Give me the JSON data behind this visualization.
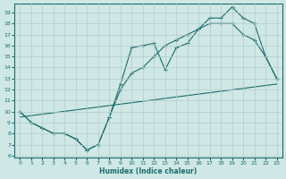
{
  "xlabel": "Humidex (Indice chaleur)",
  "background_color": "#cfe8e5",
  "grid_color": "#b0cccc",
  "line_color": "#1a6b6b",
  "xlim": [
    -0.5,
    23.5
  ],
  "ylim": [
    5.8,
    19.8
  ],
  "xticks": [
    0,
    1,
    2,
    3,
    4,
    5,
    6,
    7,
    8,
    9,
    10,
    11,
    12,
    13,
    14,
    15,
    16,
    17,
    18,
    19,
    20,
    21,
    22,
    23
  ],
  "yticks": [
    6,
    7,
    8,
    9,
    10,
    11,
    12,
    13,
    14,
    15,
    16,
    17,
    18,
    19
  ],
  "line1_x": [
    0,
    1,
    2,
    3,
    4,
    5,
    6,
    7,
    8,
    9,
    10,
    11,
    12,
    13,
    14,
    15,
    16,
    17,
    18,
    19,
    20,
    21,
    22,
    23
  ],
  "line1_y": [
    10,
    9,
    8.5,
    8,
    8,
    7.5,
    6.5,
    7,
    9.5,
    12.5,
    15.8,
    16,
    16.2,
    13.8,
    15.8,
    16.2,
    17.5,
    18.5,
    18.5,
    19.5,
    18.5,
    18,
    15,
    13
  ],
  "line2_x": [
    0,
    1,
    2,
    3,
    4,
    5,
    6,
    7,
    8,
    9,
    10,
    11,
    12,
    13,
    14,
    15,
    16,
    17,
    18,
    19,
    20,
    21,
    22,
    23
  ],
  "line2_y": [
    10,
    9,
    8.5,
    8,
    8,
    7.5,
    6.5,
    7,
    9.5,
    12.0,
    13.5,
    14,
    15,
    16,
    16.5,
    17,
    17.5,
    18,
    18,
    18,
    17,
    16.5,
    15,
    13
  ],
  "line3_x": [
    0,
    23
  ],
  "line3_y": [
    9.5,
    12.5
  ]
}
